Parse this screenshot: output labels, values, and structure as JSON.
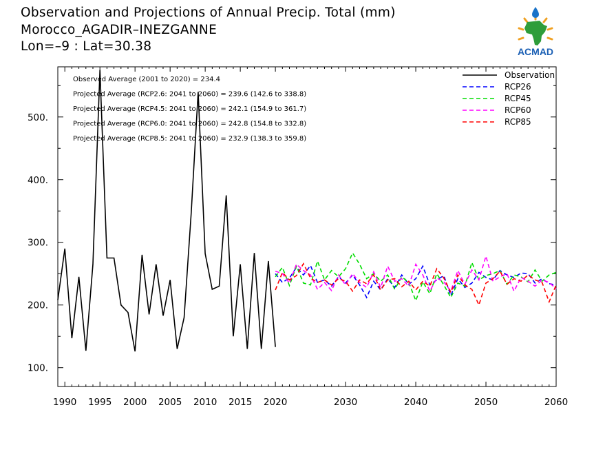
{
  "header": {
    "title": "Observation and Projections of Annual Precip. Total (mm)",
    "station": "Morocco_AGADIR–INEZGANNE",
    "coords": "Lon=–9 : Lat=30.38"
  },
  "logo": {
    "text": "ACMAD",
    "icon": "acmad-africa-logo"
  },
  "annotations": [
    "Observed Average (2001 to 2020) = 234.4",
    "Projected Average (RCP2.6: 2041 to 2060) = 239.6 (142.6 to 338.8)",
    "Projected Average (RCP4.5: 2041 to 2060) = 242.1 (154.9 to 361.7)",
    "Projected Average (RCP6.0: 2041 to 2060) = 242.8 (154.8 to 332.8)",
    "Projected Average (RCP8.5: 2041 to 2060) = 232.9 (138.3 to 359.8)"
  ],
  "chart_data": {
    "type": "line",
    "title": "Observation and Projections of Annual Precip. Total (mm)",
    "xlim": [
      1989,
      2060
    ],
    "ylim": [
      70,
      580
    ],
    "xticks": [
      1990,
      1995,
      2000,
      2005,
      2010,
      2015,
      2020,
      2030,
      2040,
      2050,
      2060
    ],
    "yticks": [
      100,
      200,
      300,
      400,
      500
    ],
    "ytick_labels": [
      "100.",
      "200.",
      "300.",
      "400.",
      "500."
    ],
    "legend_position": "top-right",
    "series": [
      {
        "name": "Observation",
        "color": "#000000",
        "dash": "solid",
        "x": [
          1989,
          1990,
          1991,
          1992,
          1993,
          1994,
          1995,
          1996,
          1997,
          1998,
          1999,
          2000,
          2001,
          2002,
          2003,
          2004,
          2005,
          2006,
          2007,
          2008,
          2009,
          2010,
          2011,
          2012,
          2013,
          2014,
          2015,
          2016,
          2017,
          2018,
          2019,
          2020
        ],
        "values": [
          208,
          290,
          147,
          245,
          127,
          265,
          575,
          275,
          275,
          200,
          188,
          126,
          280,
          185,
          265,
          183,
          240,
          130,
          180,
          345,
          540,
          282,
          225,
          230,
          375,
          150,
          265,
          130,
          283,
          130,
          270,
          133
        ]
      },
      {
        "name": "RCP26",
        "color": "#0000ff",
        "dash": "dashed",
        "x": [
          2020,
          2021,
          2022,
          2023,
          2024,
          2025,
          2026,
          2027,
          2028,
          2029,
          2030,
          2031,
          2032,
          2033,
          2034,
          2035,
          2036,
          2037,
          2038,
          2039,
          2040,
          2041,
          2042,
          2043,
          2044,
          2045,
          2046,
          2047,
          2048,
          2049,
          2050,
          2051,
          2052,
          2053,
          2054,
          2055,
          2056,
          2057,
          2058,
          2059,
          2060
        ],
        "values": [
          250,
          236,
          243,
          260,
          248,
          263,
          236,
          240,
          230,
          245,
          235,
          248,
          232,
          212,
          238,
          224,
          242,
          228,
          248,
          233,
          242,
          262,
          232,
          240,
          247,
          215,
          242,
          228,
          235,
          252,
          244,
          240,
          255,
          248,
          244,
          251,
          250,
          235,
          242,
          234,
          232
        ]
      },
      {
        "name": "RCP45",
        "color": "#00dd00",
        "dash": "dashed",
        "x": [
          2020,
          2021,
          2022,
          2023,
          2024,
          2025,
          2026,
          2027,
          2028,
          2029,
          2030,
          2031,
          2032,
          2033,
          2034,
          2035,
          2036,
          2037,
          2038,
          2039,
          2040,
          2041,
          2042,
          2043,
          2044,
          2045,
          2046,
          2047,
          2048,
          2049,
          2050,
          2051,
          2052,
          2053,
          2054,
          2055,
          2056,
          2057,
          2058,
          2059,
          2060
        ],
        "values": [
          245,
          260,
          231,
          262,
          235,
          232,
          270,
          240,
          255,
          245,
          258,
          283,
          265,
          242,
          250,
          238,
          248,
          225,
          245,
          236,
          207,
          237,
          218,
          250,
          232,
          212,
          235,
          230,
          268,
          240,
          247,
          250,
          255,
          233,
          248,
          245,
          237,
          256,
          238,
          248,
          252
        ]
      },
      {
        "name": "RCP60",
        "color": "#ff00ff",
        "dash": "dashed",
        "x": [
          2020,
          2021,
          2022,
          2023,
          2024,
          2025,
          2026,
          2027,
          2028,
          2029,
          2030,
          2031,
          2032,
          2033,
          2034,
          2035,
          2036,
          2037,
          2038,
          2039,
          2040,
          2041,
          2042,
          2043,
          2044,
          2045,
          2046,
          2047,
          2048,
          2049,
          2050,
          2051,
          2052,
          2053,
          2054,
          2055,
          2056,
          2057,
          2058,
          2059,
          2060
        ],
        "values": [
          254,
          250,
          235,
          265,
          255,
          248,
          225,
          236,
          223,
          248,
          232,
          250,
          236,
          228,
          253,
          228,
          262,
          238,
          242,
          230,
          265,
          248,
          222,
          243,
          237,
          222,
          255,
          233,
          256,
          240,
          278,
          238,
          245,
          250,
          222,
          244,
          238,
          230,
          240,
          236,
          226
        ]
      },
      {
        "name": "RCP85",
        "color": "#ff0000",
        "dash": "dashed",
        "x": [
          2020,
          2021,
          2022,
          2023,
          2024,
          2025,
          2026,
          2027,
          2028,
          2029,
          2030,
          2031,
          2032,
          2033,
          2034,
          2035,
          2036,
          2037,
          2038,
          2039,
          2040,
          2041,
          2042,
          2043,
          2044,
          2045,
          2046,
          2047,
          2048,
          2049,
          2050,
          2051,
          2052,
          2053,
          2054,
          2055,
          2056,
          2057,
          2058,
          2059,
          2060
        ],
        "values": [
          224,
          252,
          240,
          247,
          266,
          243,
          236,
          240,
          232,
          242,
          238,
          222,
          240,
          234,
          248,
          224,
          240,
          242,
          229,
          238,
          224,
          238,
          230,
          258,
          243,
          220,
          248,
          232,
          225,
          200,
          235,
          242,
          254,
          233,
          242,
          238,
          248,
          240,
          236,
          205,
          232
        ]
      }
    ]
  }
}
